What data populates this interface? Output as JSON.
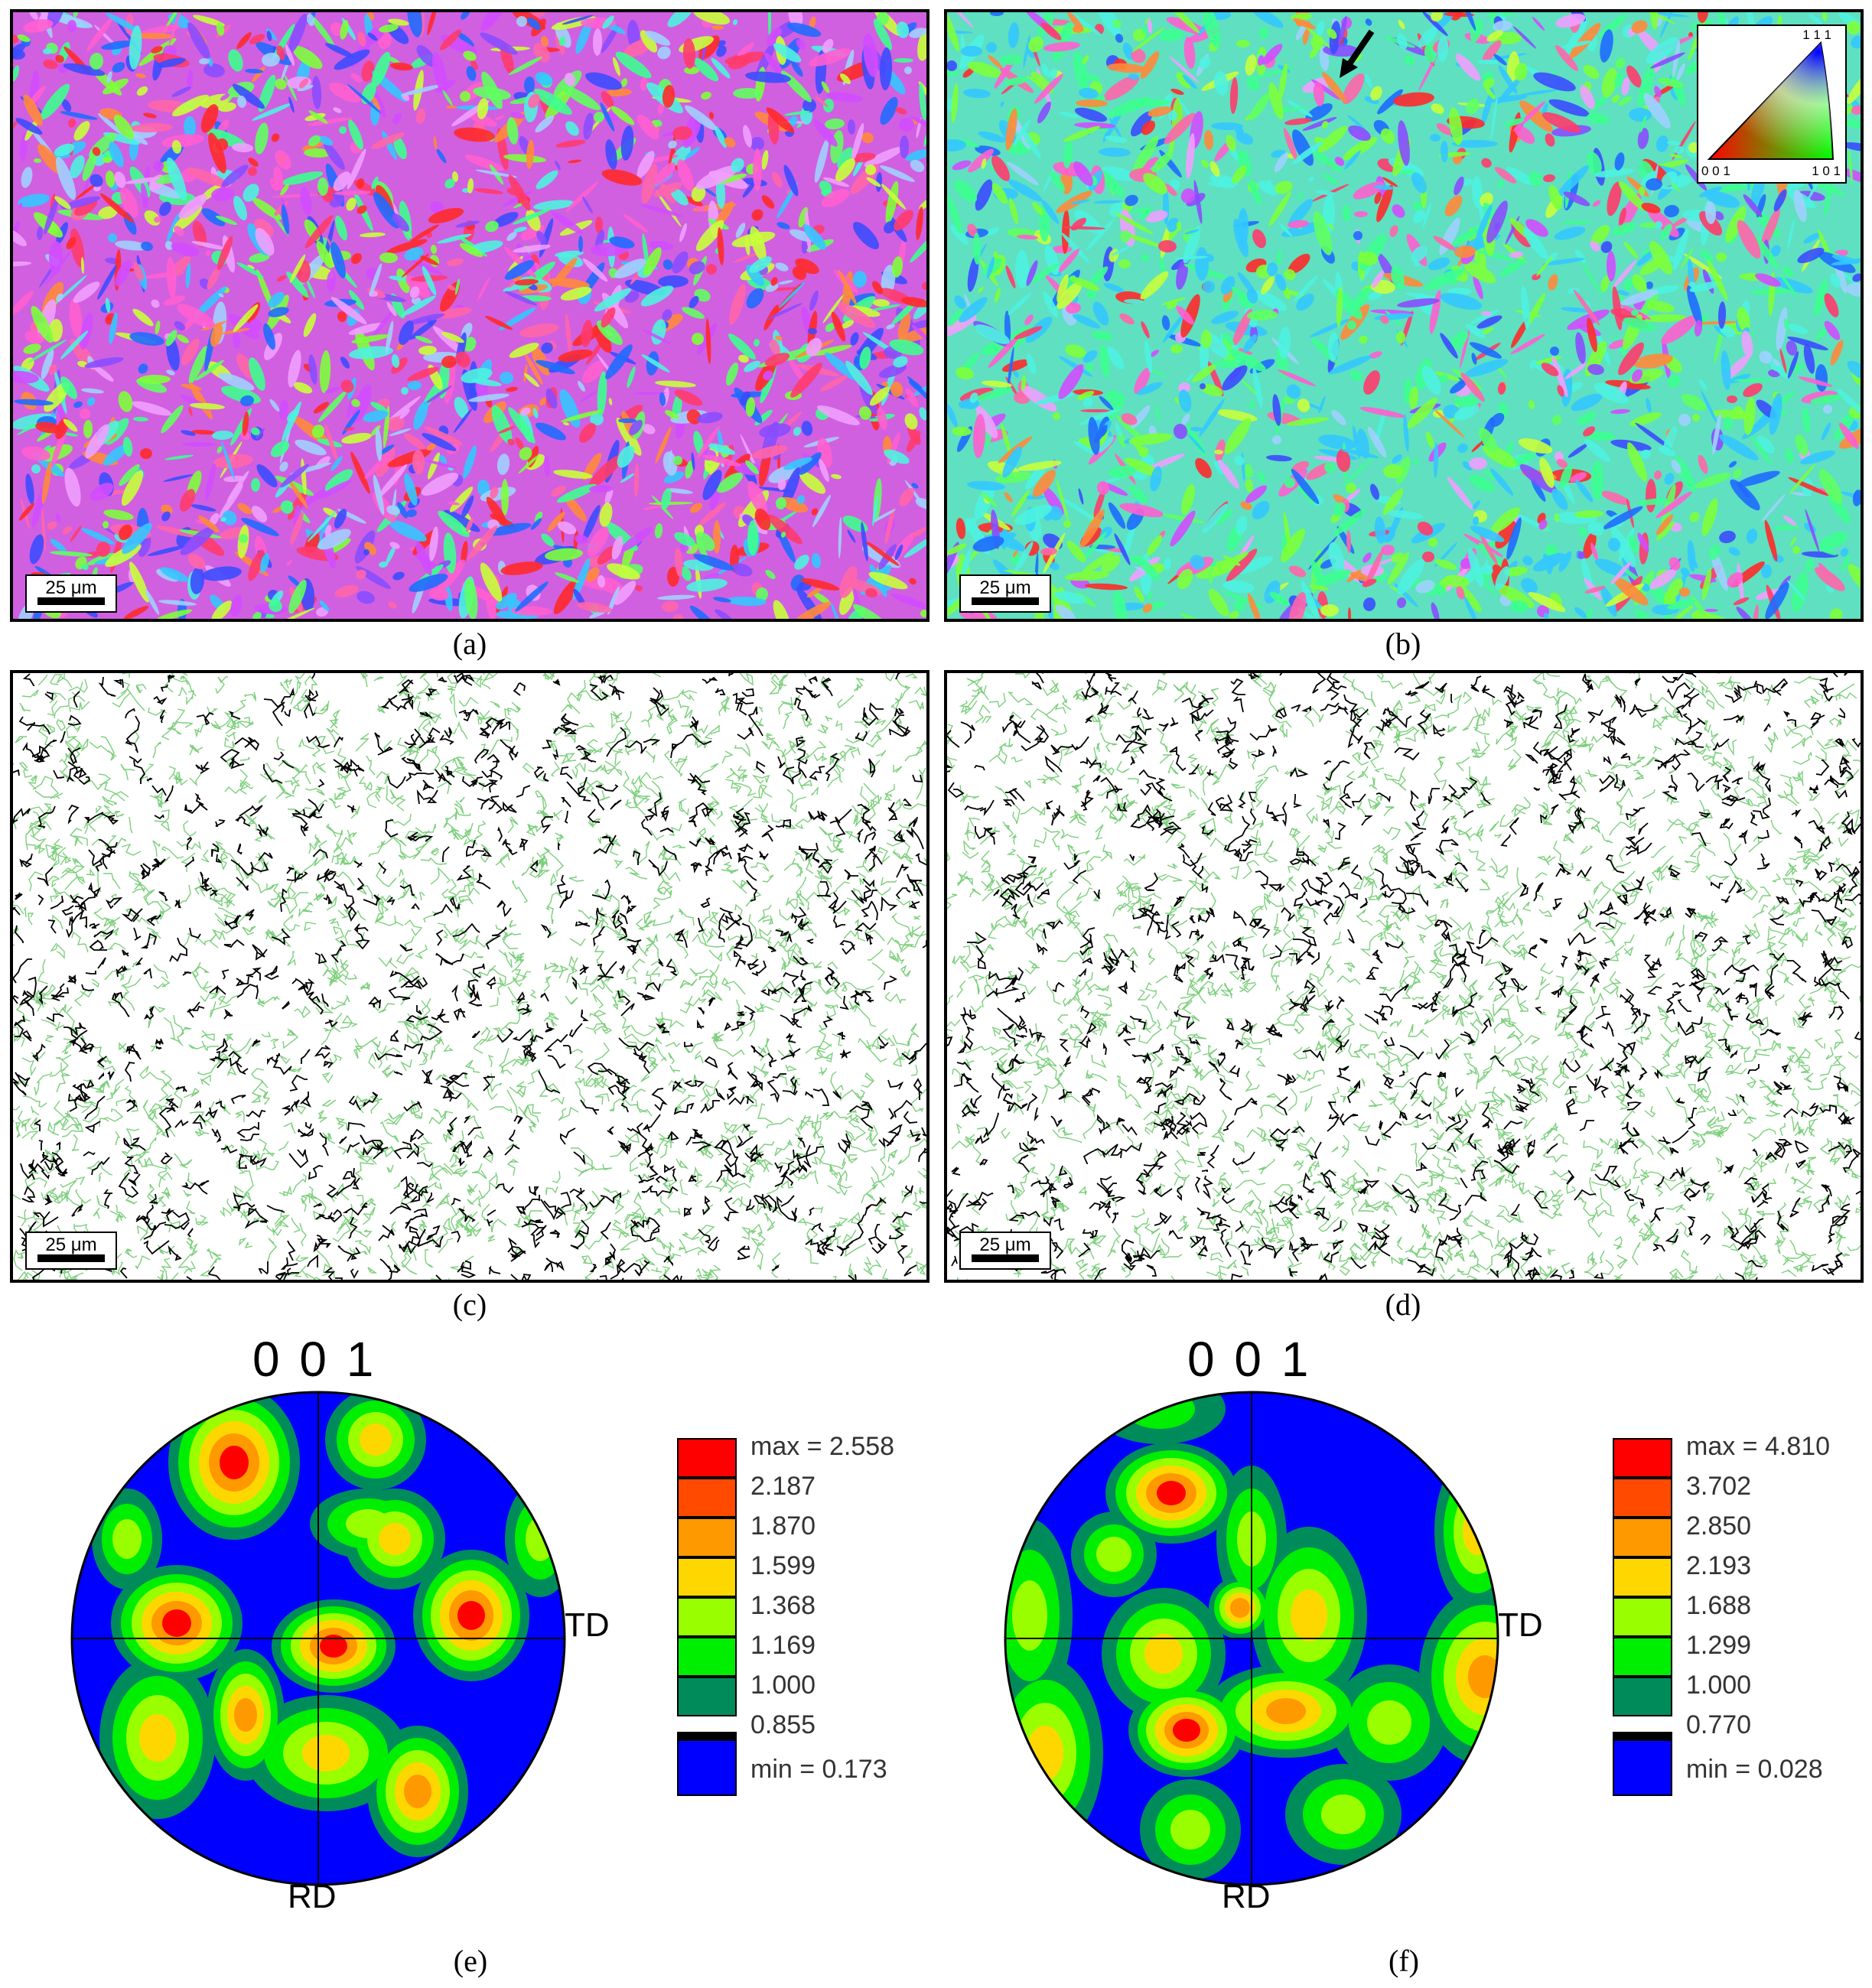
{
  "panels": {
    "a": {
      "caption": "(a)",
      "scale": "25 μm"
    },
    "b": {
      "caption": "(b)",
      "scale": "25 μm"
    },
    "c": {
      "caption": "(c)",
      "scale": "25 μm"
    },
    "d": {
      "caption": "(d)",
      "scale": "25 μm"
    },
    "e": {
      "caption": "(e)",
      "title": "0 0 1",
      "td": "TD",
      "rd": "RD",
      "legend": [
        "max = 2.558",
        "2.187",
        "1.870",
        "1.599",
        "1.368",
        "1.169",
        "1.000",
        "0.855",
        "min = 0.173"
      ]
    },
    "f": {
      "caption": "(f)",
      "title": "0 0 1",
      "td": "TD",
      "rd": "RD",
      "legend": [
        "max = 4.810",
        "3.702",
        "2.850",
        "2.193",
        "1.688",
        "1.299",
        "1.000",
        "0.770",
        "min = 0.028"
      ]
    }
  },
  "ipf_key": {
    "top": "1 1 1",
    "left": "0 0 1",
    "right": "1 0 1"
  },
  "colors": {
    "legend": [
      "#ff0000",
      "#ff4a00",
      "#ff9900",
      "#ffd700",
      "#99ff00",
      "#00ee00",
      "#008c5a",
      "#000000",
      "#0000ff"
    ],
    "boundary_low": "#7ccf7c",
    "boundary_high": "#000000"
  }
}
